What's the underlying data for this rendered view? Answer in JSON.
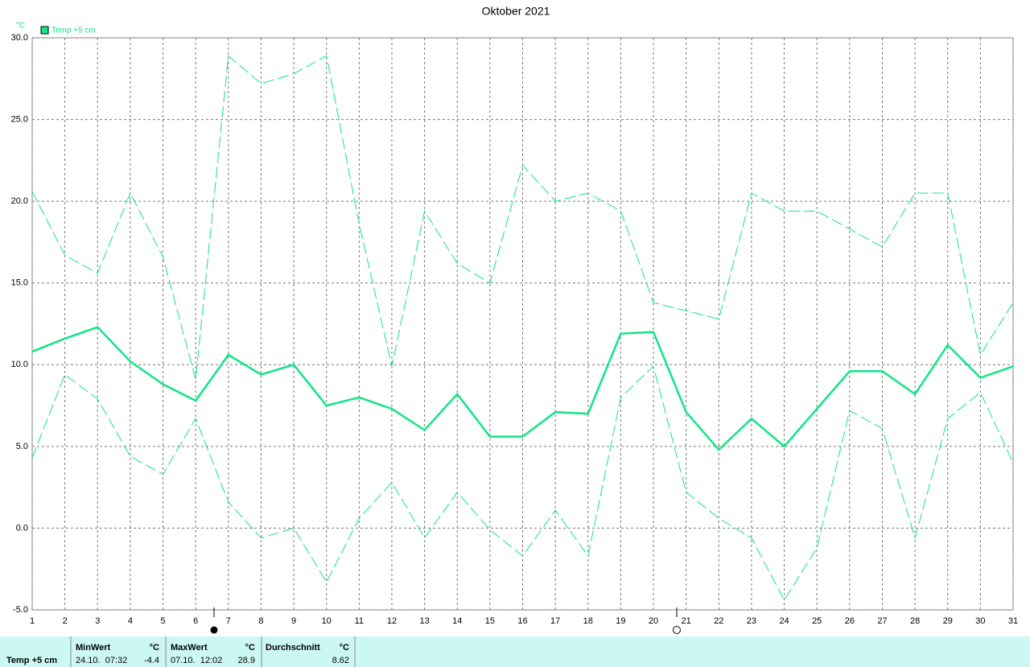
{
  "chart_data": {
    "type": "line",
    "title": "Oktober 2021",
    "y_unit": "°C",
    "categories": [
      "1",
      "2",
      "3",
      "4",
      "5",
      "6",
      "7",
      "8",
      "9",
      "10",
      "11",
      "12",
      "13",
      "14",
      "15",
      "16",
      "17",
      "18",
      "19",
      "20",
      "21",
      "22",
      "23",
      "24",
      "25",
      "26",
      "27",
      "28",
      "29",
      "30",
      "31"
    ],
    "series": [
      {
        "name": "Temp +5 cm",
        "color": "#10e682",
        "dashed": false,
        "values": [
          10.8,
          11.6,
          12.3,
          10.2,
          8.8,
          7.8,
          10.6,
          9.4,
          10.0,
          7.5,
          8.0,
          7.3,
          6.0,
          8.2,
          5.6,
          5.6,
          7.1,
          7.0,
          11.9,
          12.0,
          7.1,
          4.8,
          6.7,
          5.0,
          7.3,
          9.6,
          9.6,
          8.2,
          11.2,
          9.2,
          9.9
        ]
      },
      {
        "color": "#10e682",
        "dashed": true,
        "values": [
          20.6,
          16.7,
          15.6,
          20.5,
          16.6,
          9.1,
          28.9,
          27.2,
          27.8,
          28.9,
          18.6,
          9.9,
          19.4,
          16.2,
          15.0,
          22.2,
          20.0,
          20.5,
          19.4,
          13.8,
          13.3,
          12.8,
          20.5,
          19.4,
          19.4,
          18.3,
          17.2,
          20.5,
          20.5,
          10.6,
          13.8
        ]
      },
      {
        "color": "#10e682",
        "dashed": true,
        "values": [
          4.3,
          9.4,
          7.9,
          4.4,
          3.3,
          6.7,
          1.6,
          -0.6,
          0.0,
          -3.3,
          0.6,
          2.8,
          -0.6,
          2.2,
          -0.1,
          -1.7,
          1.1,
          -1.7,
          8.0,
          9.9,
          2.2,
          0.6,
          -0.6,
          -4.4,
          -1.2,
          7.2,
          6.1,
          -0.6,
          6.7,
          8.3,
          4.0
        ]
      }
    ],
    "ylim": [
      -5,
      30
    ],
    "yticks": [
      {
        "value": 30,
        "label": "30.0"
      },
      {
        "value": 25,
        "label": "25.0"
      },
      {
        "value": 20,
        "label": "20.0"
      },
      {
        "value": 15,
        "label": "15.0"
      },
      {
        "value": 10,
        "label": "10.0"
      },
      {
        "value": 5,
        "label": "5.0"
      },
      {
        "value": 0,
        "label": "0.0"
      },
      {
        "value": -5,
        "label": "-5.0"
      }
    ],
    "grid": true
  },
  "summary": {
    "sensor": "Temp +5 cm",
    "min": {
      "header": "MinWert",
      "unit": "°C",
      "time": "24.10.  07:32",
      "value": -4.4
    },
    "max": {
      "header": "MaxWert",
      "unit": "°C",
      "time": "07.10.  12:02",
      "value": 28.9
    },
    "avg": {
      "header": "Durchschnitt",
      "unit": "°C",
      "value": 8.62
    }
  }
}
